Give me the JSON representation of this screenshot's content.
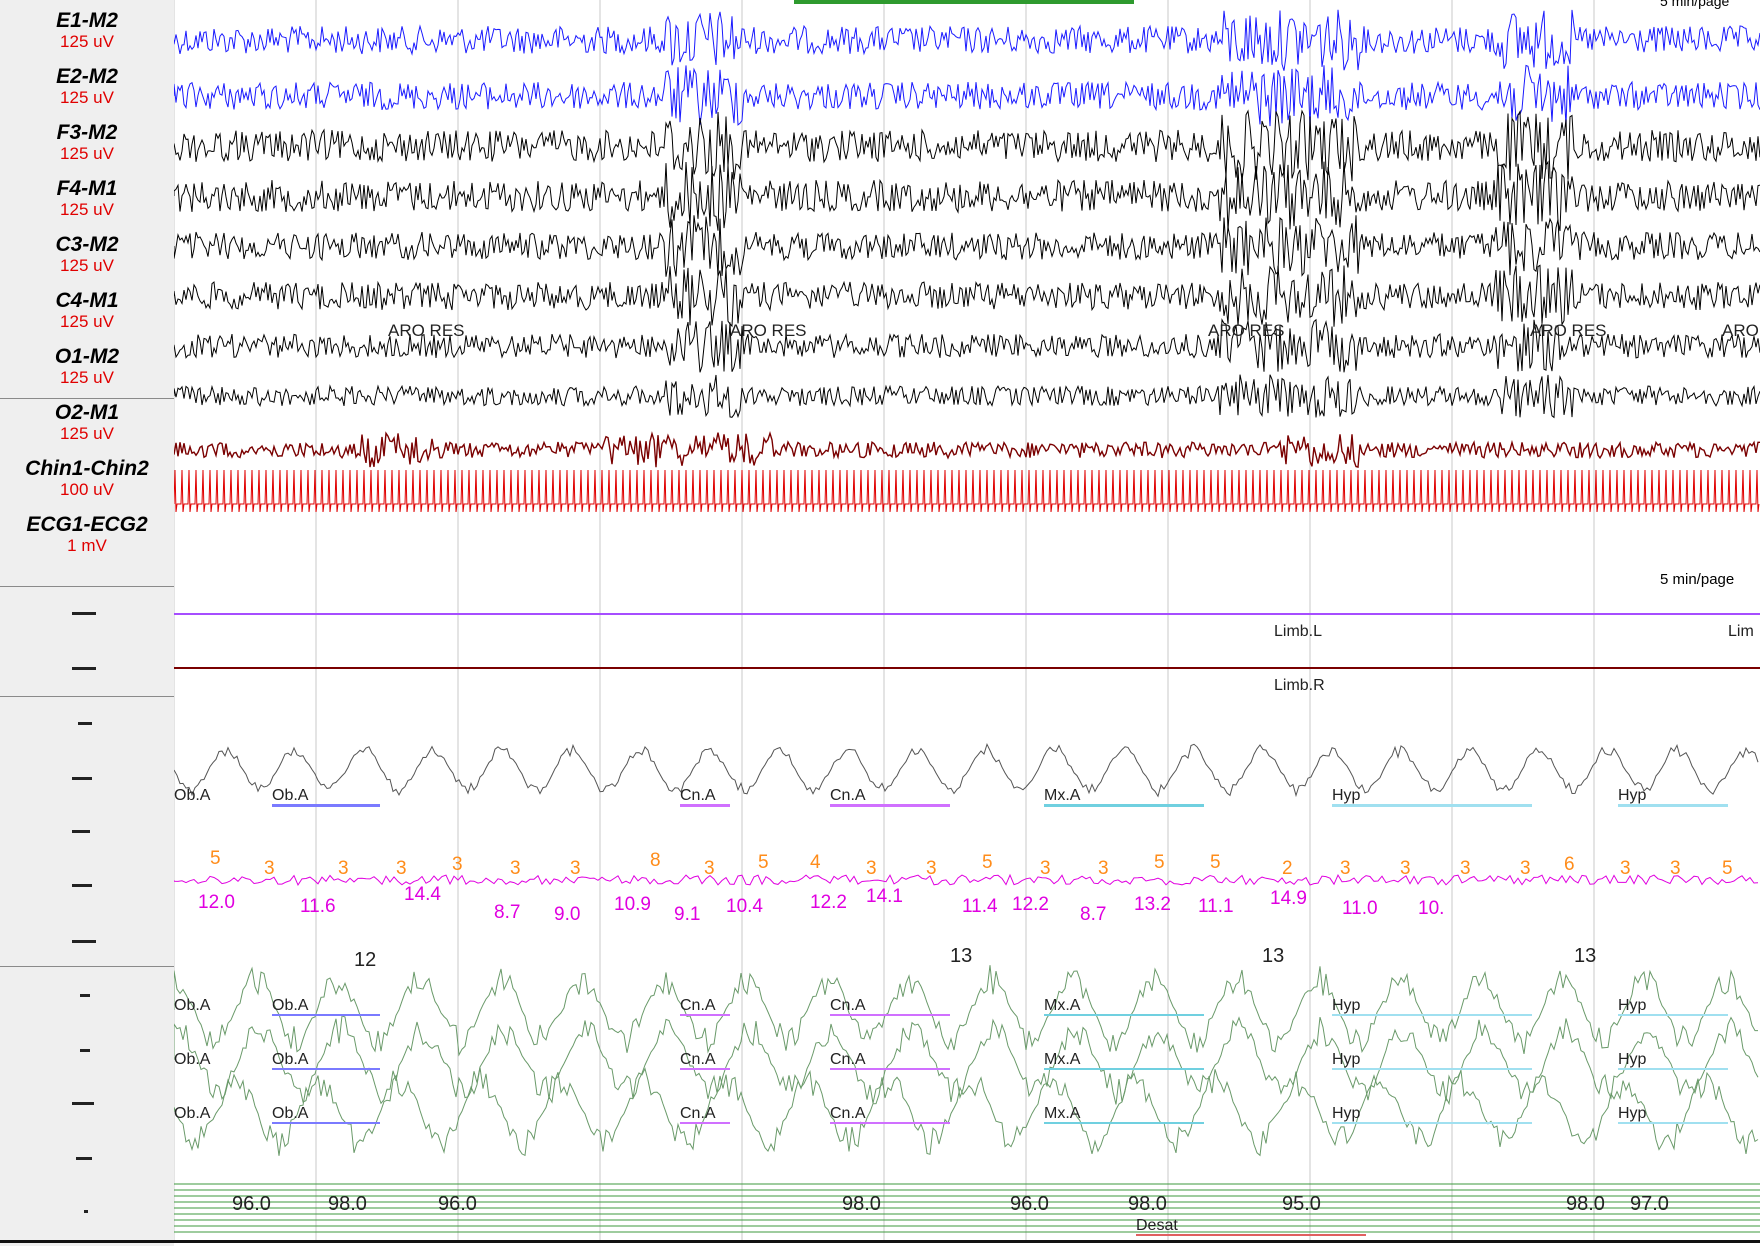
{
  "eeg_channels": [
    {
      "name": "E1-M2",
      "scale": "125 uV",
      "color": "#1a1aff"
    },
    {
      "name": "E2-M2",
      "scale": "125 uV",
      "color": "#1a1aff"
    },
    {
      "name": "F3-M2",
      "scale": "125 uV",
      "color": "#000000"
    },
    {
      "name": "F4-M1",
      "scale": "125 uV",
      "color": "#000000"
    },
    {
      "name": "C3-M2",
      "scale": "125 uV",
      "color": "#000000"
    },
    {
      "name": "C4-M1",
      "scale": "125 uV",
      "color": "#000000"
    },
    {
      "name": "O1-M2",
      "scale": "125 uV",
      "color": "#000000"
    },
    {
      "name": "O2-M1",
      "scale": "125 uV",
      "color": "#000000"
    },
    {
      "name": "Chin1-Chin2",
      "scale": "100 uV",
      "color": "#7a0000"
    },
    {
      "name": "ECG1-ECG2",
      "scale": "1 mV",
      "color": "#e00000"
    }
  ],
  "page_scale_label": "5 min/page",
  "arousal_events": [
    "ARO RES",
    "ARO RES",
    "ARO RES",
    "ARO RES",
    "ARO"
  ],
  "limb_events": [
    "Limb.L",
    "Limb.R",
    "Lim"
  ],
  "flow_events": [
    "Ob.A",
    "Ob.A",
    "Cn.A",
    "Cn.A",
    "Mx.A",
    "Hyp",
    "Hyp"
  ],
  "breath_counts": [
    "5",
    "3",
    "3",
    "3",
    "3",
    "3",
    "3",
    "8",
    "3",
    "5",
    "4",
    "3",
    "3",
    "5",
    "3",
    "3",
    "5",
    "5",
    "2",
    "3",
    "3",
    "3",
    "3",
    "6",
    "3",
    "3",
    "5"
  ],
  "event_values": [
    "12.0",
    "11.6",
    "14.4",
    "8.7",
    "9.0",
    "10.9",
    "9.1",
    "10.4",
    "12.2",
    "14.1",
    "11.4",
    "12.2",
    "8.7",
    "13.2",
    "11.1",
    "14.9",
    "11.0",
    "10."
  ],
  "rate_values": [
    "12",
    "13",
    "13",
    "13"
  ],
  "effort_events": [
    "Ob.A",
    "Ob.A",
    "Cn.A",
    "Cn.A",
    "Mx.A",
    "Hyp",
    "Hyp"
  ],
  "spo2_values": [
    "96.0",
    "98.0",
    "96.0",
    "98.0",
    "96.0",
    "98.0",
    "95.0",
    "98.0",
    "97.0"
  ],
  "desat_label": "Desat",
  "colors": {
    "eeg_eye": "#1a1aff",
    "eeg": "#000000",
    "chin": "#7a0000",
    "ecg": "#e00000",
    "limb_left": "#a64dff",
    "limb_right": "#7a0000",
    "flow": "#555555",
    "effort": "#6a9a6a",
    "count": "#ff8c1a",
    "value": "#e000e0",
    "spo2_grid": "#3c9a3c",
    "desat": "#e06060"
  }
}
